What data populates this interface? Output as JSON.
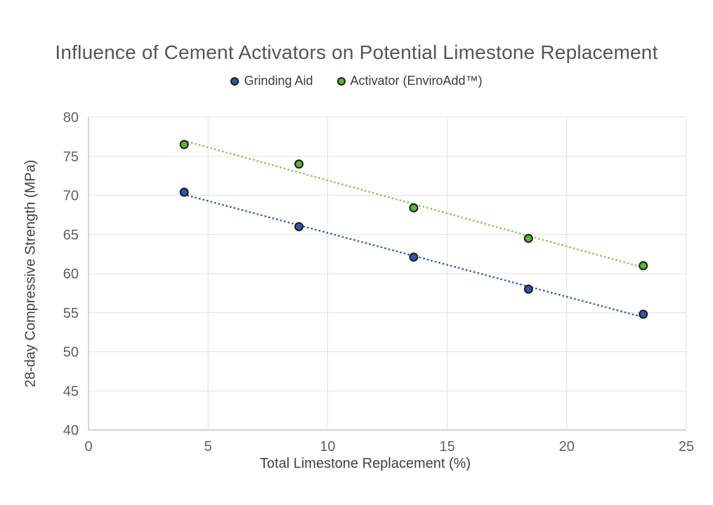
{
  "chart_data": {
    "type": "scatter",
    "title": "Influence of Cement Activators on Potential Limestone Replacement",
    "xlabel": "Total Limestone Replacement (%)",
    "ylabel": "28-day Compressive Strength (MPa)",
    "xlim": [
      0,
      25
    ],
    "ylim": [
      40,
      80
    ],
    "xticks": [
      0,
      5,
      10,
      15,
      20,
      25
    ],
    "yticks": [
      40,
      45,
      50,
      55,
      60,
      65,
      70,
      75,
      80
    ],
    "grid": true,
    "legend_position": "top",
    "series": [
      {
        "name": "Grinding Aid",
        "marker_color": "#2d59a5",
        "marker_outline": "#1b1b1b",
        "trend_color": "#3f63ab",
        "trendline": "linear",
        "x": [
          4,
          8.8,
          13.6,
          18.4,
          23.2
        ],
        "y": [
          70.4,
          66.0,
          62.1,
          58.0,
          54.8
        ]
      },
      {
        "name": "Activator (EnviroAdd™)",
        "marker_color": "#5cb335",
        "marker_outline": "#1b1b1b",
        "trend_color": "#8fc561",
        "trendline": "linear",
        "x": [
          4,
          8.8,
          13.6,
          18.4,
          23.2
        ],
        "y": [
          76.5,
          74.0,
          68.4,
          64.5,
          61.0
        ]
      }
    ],
    "colors": {
      "gridline": "#e0e0e0",
      "axis_line": "#c4c4c4",
      "title_text": "#555555",
      "tick_text": "#606060",
      "axis_title_text": "#404040",
      "legend_text": "#3b3b3b"
    }
  }
}
